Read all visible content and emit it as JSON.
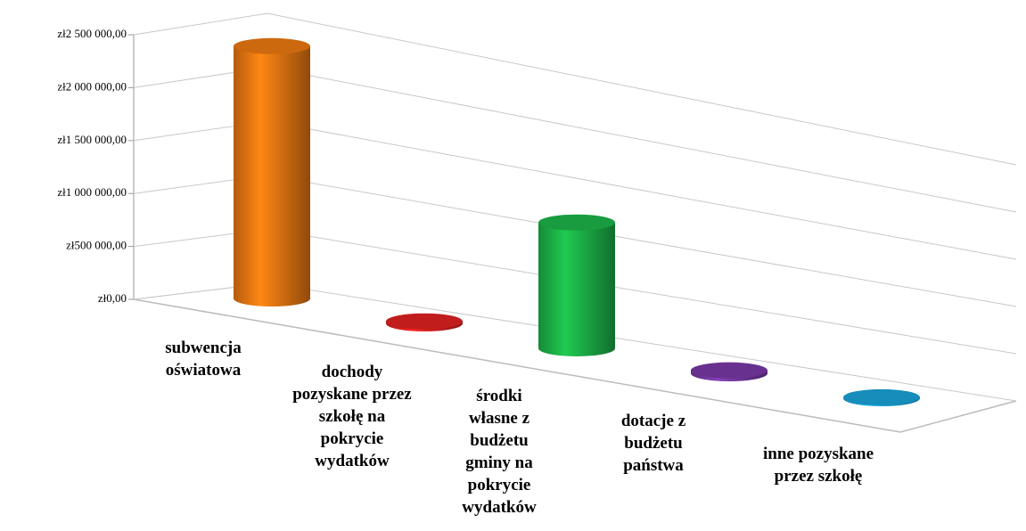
{
  "chart_data": {
    "type": "bar3d",
    "categories": [
      "subwencja oświatowa",
      "dochody pozyskane przez szkołę na pokrycie wydatków",
      "środki własne z budżetu gminy na pokrycie wydatków",
      "dotacje z budżetu państwa",
      "inne pozyskane przez szkołę"
    ],
    "values": [
      2400000,
      20000,
      1250000,
      30000,
      10000
    ],
    "colors": [
      "#f07b12",
      "#e32222",
      "#1db84a",
      "#7b3aa8",
      "#1aa6dc"
    ],
    "ylim": [
      0,
      2500000
    ],
    "yticks": [
      {
        "value": 0,
        "label": "zł0,00"
      },
      {
        "value": 500000,
        "label": "zł500 000,00"
      },
      {
        "value": 1000000,
        "label": "zł1 000 000,00"
      },
      {
        "value": 1500000,
        "label": "zł1 500 000,00"
      },
      {
        "value": 2000000,
        "label": "zł2 000 000,00"
      },
      {
        "value": 2500000,
        "label": "zł2 500 000,00"
      }
    ],
    "grid": true
  }
}
